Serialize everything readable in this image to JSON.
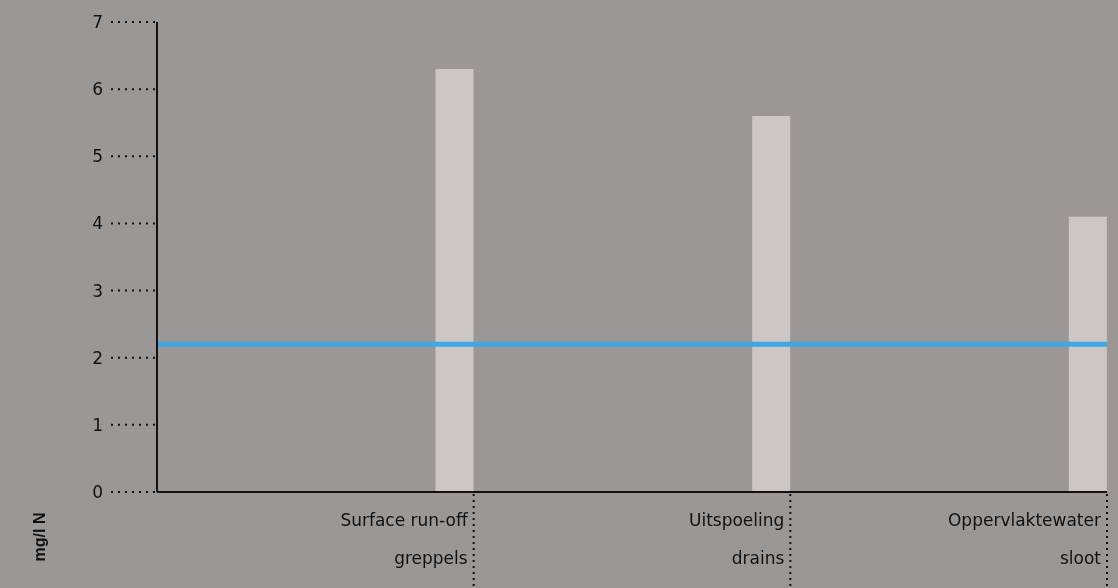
{
  "chart_data": {
    "type": "bar",
    "ylabel": "mg/l N",
    "categories": [
      "Surface run-off\ngreppels",
      "Uitspoeling\ndrains",
      "Oppervlaktewater\nsloot"
    ],
    "values": [
      6.3,
      5.6,
      4.1
    ],
    "color": "#ccc7c4",
    "ylim": [
      0,
      7
    ],
    "yticks": [
      0,
      1,
      2,
      3,
      4,
      5,
      6,
      7
    ],
    "grid": false,
    "legend": false,
    "ref_lines": [
      {
        "axis": "y",
        "value": 2.2,
        "color": "#3fa7e3"
      }
    ]
  }
}
